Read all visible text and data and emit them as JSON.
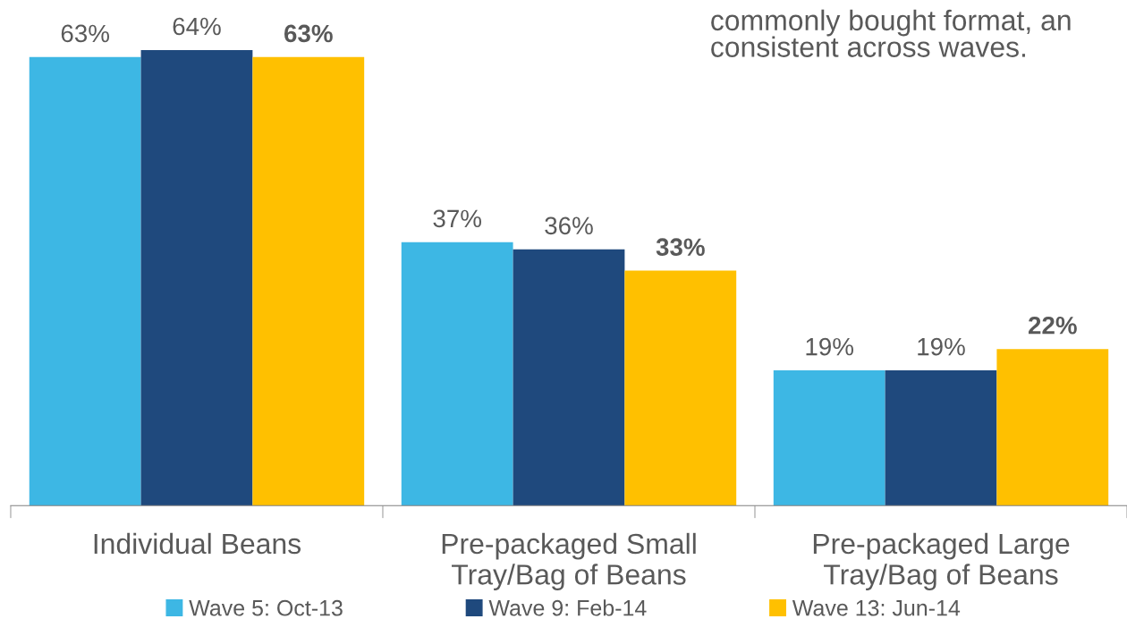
{
  "chart_data": {
    "type": "bar",
    "categories": [
      "Individual Beans",
      "Pre-packaged Small\nTray/Bag of Beans",
      "Pre-packaged Large\nTray/Bag of Beans"
    ],
    "series": [
      {
        "name": "Wave 5: Oct-13",
        "color": "#3db7e4",
        "values": [
          63,
          37,
          19
        ],
        "value_labels": [
          "63%",
          "37%",
          "19%"
        ]
      },
      {
        "name": "Wave 9: Feb-14",
        "color": "#1f497d",
        "values": [
          64,
          36,
          19
        ],
        "value_labels": [
          "64%",
          "36%",
          "19%"
        ]
      },
      {
        "name": "Wave 13: Jun-14",
        "color": "#ffc000",
        "values": [
          63,
          33,
          22
        ],
        "value_labels": [
          "63%",
          "33%",
          "22%"
        ]
      }
    ],
    "tick_labels": "x",
    "legend": "bottom",
    "annotations": [
      "commonly bought format, an\nconsistent across waves."
    ]
  }
}
